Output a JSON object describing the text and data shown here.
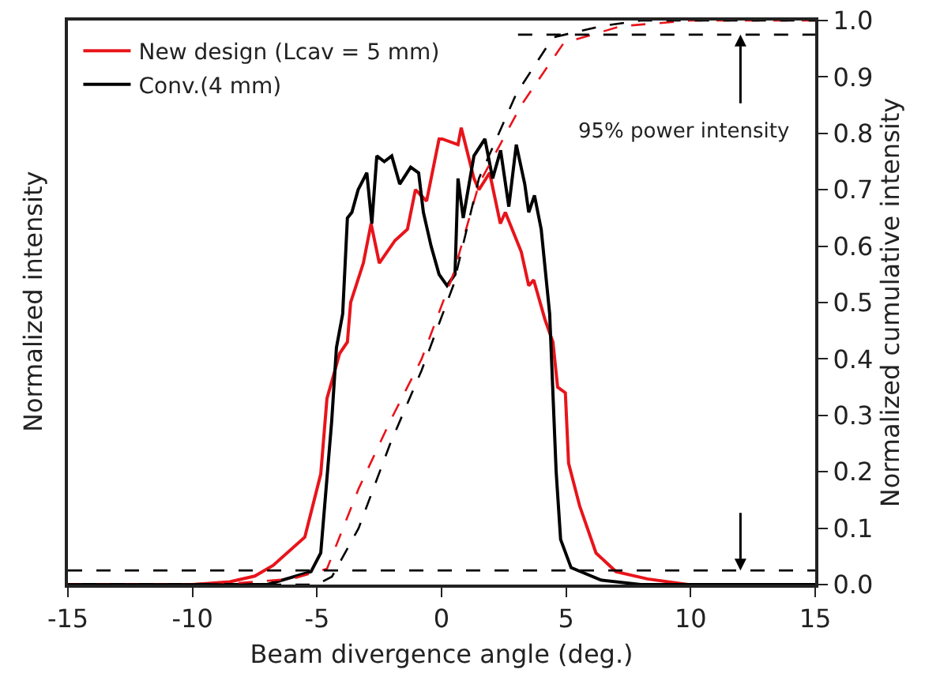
{
  "chart_data": {
    "type": "line",
    "xlabel": "Beam divergence angle (deg.)",
    "ylabel": "Normalized intensity",
    "y2label": "Normalized cumulative intensity",
    "xlim": [
      -15,
      15
    ],
    "xticks": [
      -15,
      -10,
      -5,
      0,
      5,
      10,
      15
    ],
    "ylim": [
      0,
      1
    ],
    "yticks": [
      {
        "value": 0,
        "label": "0.0"
      },
      {
        "value": 0.1,
        "label": "0.1"
      },
      {
        "value": 0.2,
        "label": "0.2"
      },
      {
        "value": 0.3,
        "label": "0.3"
      },
      {
        "value": 0.4,
        "label": "0.4"
      },
      {
        "value": 0.5,
        "label": "0.5"
      },
      {
        "value": 0.6,
        "label": "0.6"
      },
      {
        "value": 0.7,
        "label": "0.7"
      },
      {
        "value": 0.8,
        "label": "0.8"
      },
      {
        "value": 0.9,
        "label": "0.9"
      },
      {
        "value": 1,
        "label": "1.0"
      }
    ],
    "grid": false,
    "legend": "top left",
    "marker": "none",
    "annotations": [
      {
        "text": "95% power intensity",
        "x": 12,
        "y": 0.975
      }
    ],
    "series": [
      {
        "name": "New design (Lcav = 5 mm)",
        "color": "#e8141b",
        "line_style": "solid",
        "x": [
          -15,
          -10,
          -8.5,
          -7.5,
          -6.76,
          -5.49,
          -4.85,
          -4.6,
          -4.28,
          -4.09,
          -3.78,
          -3.65,
          -3.14,
          -2.83,
          -2.5,
          -1.87,
          -1.37,
          -1.05,
          -0.6,
          -0.1,
          0.03,
          0.66,
          0.79,
          1.3,
          1.5,
          1.93,
          2.36,
          2.56,
          3.2,
          3.5,
          3.7,
          4.15,
          4.47,
          4.66,
          4.97,
          5.1,
          5.54,
          6.2,
          7.0,
          8.27,
          9.9,
          15
        ],
        "values": [
          0,
          0,
          0.005,
          0.015,
          0.034,
          0.084,
          0.196,
          0.33,
          0.38,
          0.41,
          0.43,
          0.5,
          0.57,
          0.64,
          0.57,
          0.61,
          0.63,
          0.7,
          0.68,
          0.79,
          0.79,
          0.78,
          0.81,
          0.72,
          0.7,
          0.73,
          0.64,
          0.66,
          0.59,
          0.53,
          0.54,
          0.47,
          0.43,
          0.35,
          0.34,
          0.215,
          0.14,
          0.056,
          0.023,
          0.01,
          0,
          0
        ]
      },
      {
        "name": "Conv.(4 mm)",
        "color": "#000000",
        "line_style": "solid",
        "x": [
          -15,
          -7,
          -5.24,
          -4.85,
          -4.41,
          -4.22,
          -3.97,
          -3.78,
          -3.6,
          -3.35,
          -3.0,
          -2.8,
          -2.6,
          -2.3,
          -2.0,
          -1.68,
          -1.24,
          -0.92,
          -0.73,
          -0.42,
          -0.1,
          0.22,
          0.54,
          0.66,
          0.87,
          1.3,
          1.74,
          2.05,
          2.37,
          2.7,
          3.0,
          3.34,
          3.5,
          3.73,
          4.0,
          4.34,
          4.6,
          4.78,
          5.2,
          6.4,
          8,
          15
        ],
        "values": [
          0,
          0,
          0.023,
          0.056,
          0.29,
          0.42,
          0.48,
          0.65,
          0.66,
          0.7,
          0.73,
          0.64,
          0.76,
          0.75,
          0.76,
          0.71,
          0.74,
          0.73,
          0.66,
          0.6,
          0.55,
          0.53,
          0.55,
          0.72,
          0.65,
          0.76,
          0.79,
          0.72,
          0.77,
          0.67,
          0.78,
          0.71,
          0.66,
          0.69,
          0.63,
          0.48,
          0.2,
          0.08,
          0.03,
          0.008,
          0,
          0
        ]
      },
      {
        "color": "#e8141b",
        "line_style": "dashed",
        "x": [
          -15,
          -9,
          -6,
          -4.6,
          -3.33,
          -2.06,
          -0.8,
          0.47,
          1.5,
          3.2,
          4.9,
          7.2,
          10,
          15
        ],
        "values": [
          0,
          0,
          0.01,
          0.028,
          0.17,
          0.29,
          0.4,
          0.55,
          0.71,
          0.85,
          0.96,
          0.99,
          1,
          1
        ]
      },
      {
        "color": "#000000",
        "line_style": "dashed",
        "x": [
          -15,
          -5,
          -4.4,
          -3.33,
          -2.06,
          -0.8,
          0.47,
          1.5,
          3.0,
          4.47,
          6.4,
          8,
          15
        ],
        "values": [
          0,
          0,
          0.014,
          0.1,
          0.25,
          0.38,
          0.53,
          0.72,
          0.87,
          0.97,
          0.99,
          1,
          1
        ]
      },
      {
        "color": "#000000",
        "line_style": "dashed",
        "x": [
          3.07,
          15
        ],
        "values": [
          0.975,
          0.975
        ]
      },
      {
        "color": "#000000",
        "line_style": "dashed",
        "x": [
          -15,
          15
        ],
        "values": [
          0.025,
          0.025
        ]
      }
    ]
  }
}
